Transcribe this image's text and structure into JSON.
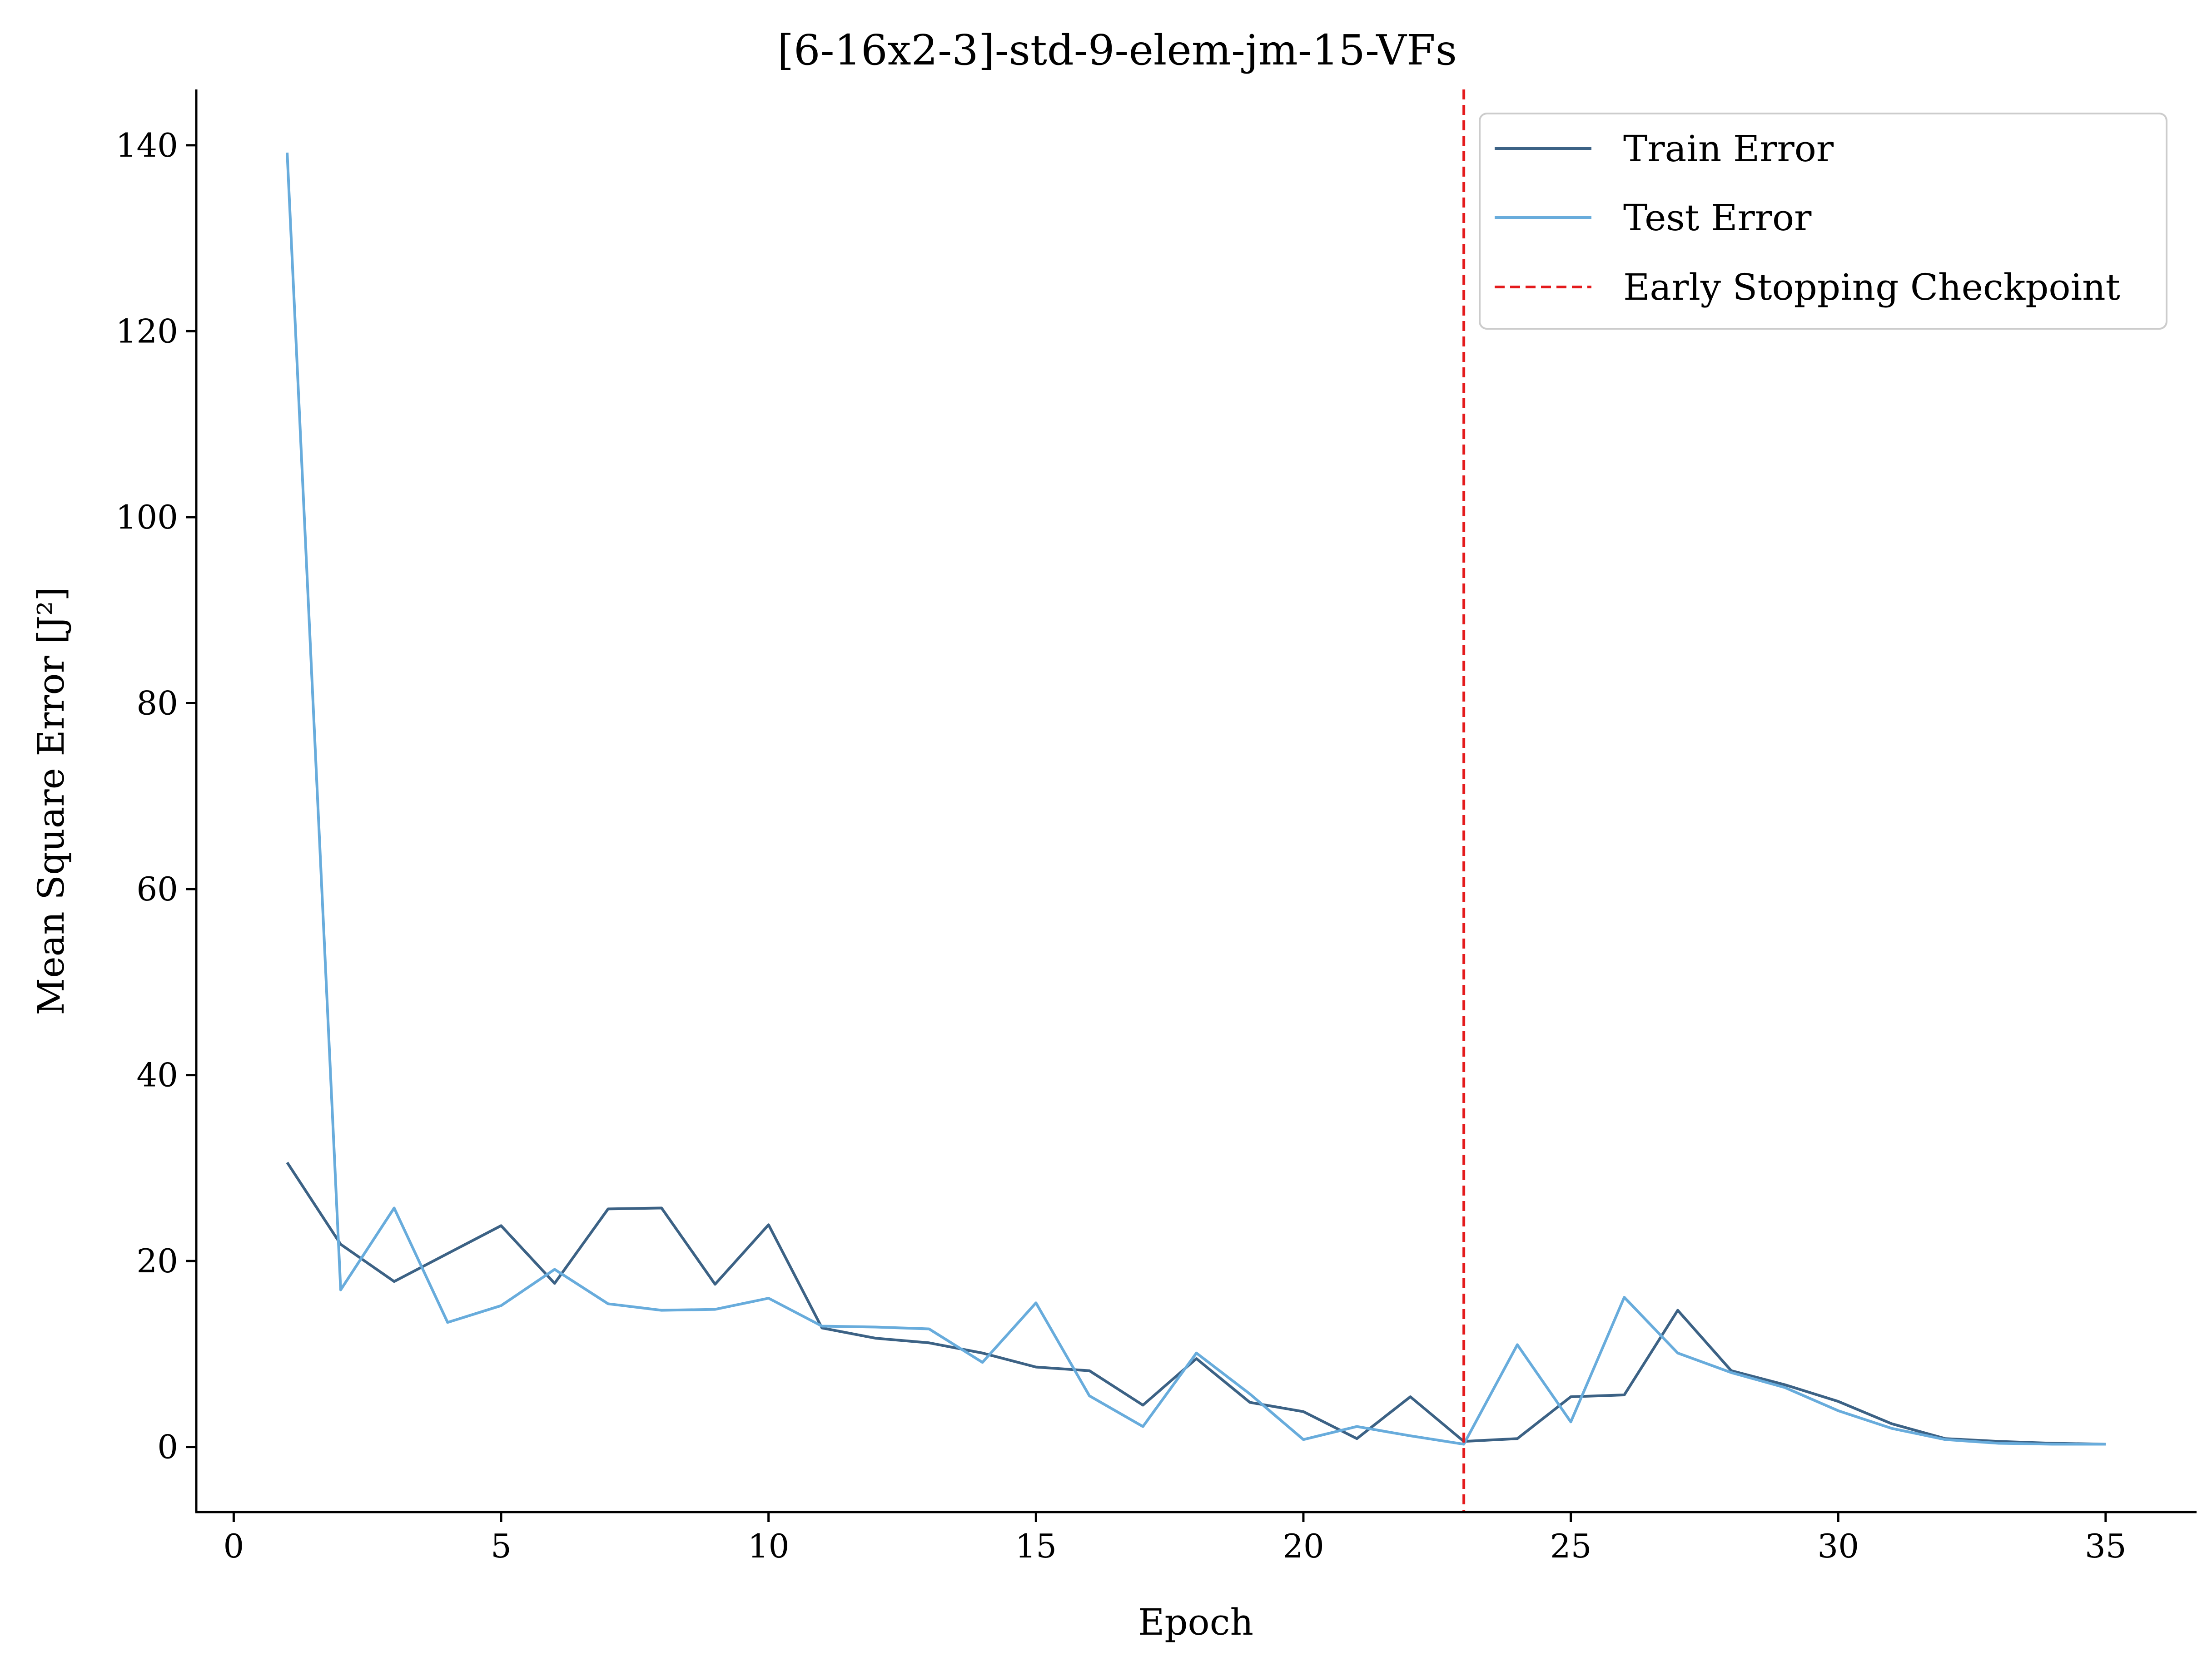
{
  "chart_data": {
    "type": "line",
    "title": "[6-16x2-3]-std-9-elem-jm-15-VFs",
    "xlabel": "Epoch",
    "ylabel": "Mean Square Error [J²]",
    "xlim": [
      -0.7,
      36.7
    ],
    "ylim": [
      -7,
      146
    ],
    "xticks": [
      0,
      5,
      10,
      15,
      20,
      25,
      30,
      35
    ],
    "yticks": [
      0,
      20,
      40,
      60,
      80,
      100,
      120,
      140
    ],
    "x": [
      1,
      2,
      3,
      4,
      5,
      6,
      7,
      8,
      9,
      10,
      11,
      12,
      13,
      14,
      15,
      16,
      17,
      18,
      19,
      20,
      21,
      22,
      23,
      24,
      25,
      26,
      27,
      28,
      29,
      30,
      31,
      32,
      33,
      34,
      35
    ],
    "series": [
      {
        "name": "Train Error",
        "color": "#3c6285",
        "values": [
          30.6,
          21.8,
          17.8,
          20.8,
          23.8,
          17.6,
          25.6,
          25.7,
          17.5,
          23.9,
          12.8,
          11.7,
          11.2,
          10.1,
          8.6,
          8.2,
          4.5,
          9.5,
          4.8,
          3.8,
          0.9,
          5.4,
          0.6,
          0.9,
          5.4,
          5.6,
          14.7,
          8.2,
          6.7,
          4.9,
          2.5,
          0.9,
          0.6,
          0.4,
          0.3
        ]
      },
      {
        "name": "Test Error",
        "color": "#68acdc",
        "values": [
          139.2,
          16.9,
          25.7,
          13.4,
          15.2,
          19.1,
          15.4,
          14.7,
          14.8,
          16.0,
          13.0,
          12.9,
          12.7,
          9.1,
          15.5,
          5.5,
          2.2,
          10.1,
          5.7,
          0.8,
          2.2,
          1.2,
          0.3,
          11.0,
          2.7,
          16.1,
          10.1,
          8.0,
          6.4,
          3.9,
          2.0,
          0.8,
          0.4,
          0.3,
          0.3
        ]
      }
    ],
    "vline": {
      "x": 23,
      "name": "Early Stopping Checkpoint",
      "color": "#e41a1c",
      "style": "dashed"
    },
    "legend_position": "top-right",
    "grid": false
  }
}
